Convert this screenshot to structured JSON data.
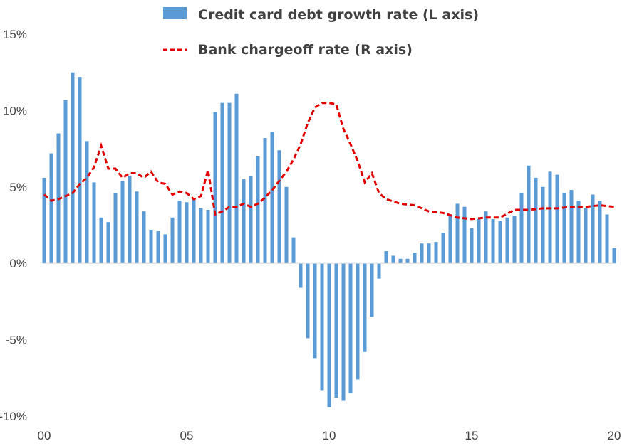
{
  "chart_data": {
    "type": "bar+line",
    "legend": {
      "placement": "top",
      "entries": [
        {
          "label": "Credit card debt growth rate (L axis)",
          "marker": "bar",
          "color": "#5B9BD5"
        },
        {
          "label": "Bank chargeoff rate (R axis)",
          "marker": "dashed-line",
          "color": "#E00000"
        }
      ]
    },
    "y_axis": {
      "ylim": [
        -10,
        15
      ],
      "ticks": [
        15,
        10,
        5,
        0,
        -5,
        -10
      ],
      "tick_labels": [
        "15%",
        "10%",
        "5%",
        "0%",
        "-5%",
        "-10%"
      ]
    },
    "x_axis": {
      "xlim": [
        2000,
        2020
      ],
      "ticks": [
        2000,
        2005,
        2010,
        2015,
        2020
      ],
      "tick_labels": [
        "00",
        "05",
        "10",
        "15",
        "20"
      ]
    },
    "grid": false,
    "series": [
      {
        "name": "Credit card debt growth rate (L axis)",
        "kind": "bar",
        "color": "#5B9BD5",
        "x_start": 2000.0,
        "x_step": 0.25,
        "values": [
          5.6,
          7.2,
          8.5,
          10.7,
          12.5,
          12.2,
          8.0,
          5.3,
          3.0,
          2.7,
          4.6,
          5.4,
          5.7,
          4.7,
          3.4,
          2.2,
          2.1,
          1.9,
          3.0,
          4.1,
          4.0,
          4.2,
          3.6,
          3.5,
          9.9,
          10.5,
          10.5,
          11.1,
          5.5,
          5.7,
          7.0,
          8.2,
          8.6,
          7.4,
          5.0,
          1.7,
          -1.6,
          -4.9,
          -6.2,
          -8.3,
          -9.4,
          -8.8,
          -9.0,
          -8.5,
          -7.6,
          -5.8,
          -3.5,
          -1.0,
          0.8,
          0.5,
          0.3,
          0.3,
          0.7,
          1.3,
          1.3,
          1.4,
          2.0,
          3.2,
          3.9,
          3.7,
          2.3,
          2.9,
          3.4,
          2.9,
          2.8,
          3.0,
          3.1,
          4.6,
          6.4,
          5.6,
          5.0,
          6.0,
          5.8,
          4.6,
          4.8,
          4.1,
          3.6,
          4.5,
          4.1,
          3.2,
          1.0
        ]
      },
      {
        "name": "Bank chargeoff rate (R axis)",
        "kind": "line",
        "style": "dashed",
        "color": "#E00000",
        "x": [
          2000.0,
          2000.25,
          2000.5,
          2000.75,
          2001.0,
          2001.25,
          2001.5,
          2001.75,
          2002.0,
          2002.25,
          2002.5,
          2002.75,
          2003.0,
          2003.25,
          2003.5,
          2003.75,
          2004.0,
          2004.25,
          2004.5,
          2004.75,
          2005.0,
          2005.25,
          2005.5,
          2005.75,
          2006.0,
          2006.25,
          2006.5,
          2006.75,
          2007.0,
          2007.25,
          2007.5,
          2007.75,
          2008.0,
          2008.25,
          2008.5,
          2008.75,
          2009.0,
          2009.25,
          2009.5,
          2009.75,
          2010.0,
          2010.25,
          2010.5,
          2010.75,
          2011.0,
          2011.25,
          2011.5,
          2011.75,
          2012.0,
          2012.5,
          2013.0,
          2013.5,
          2014.0,
          2014.5,
          2015.0,
          2015.5,
          2016.0,
          2016.5,
          2017.0,
          2017.5,
          2018.0,
          2018.5,
          2019.0,
          2019.5,
          2020.0
        ],
        "values": [
          4.5,
          4.1,
          4.2,
          4.4,
          4.6,
          5.2,
          5.6,
          6.3,
          7.7,
          6.2,
          6.2,
          5.6,
          5.9,
          5.9,
          5.6,
          6.0,
          5.3,
          5.2,
          4.5,
          4.7,
          4.6,
          4.2,
          4.4,
          6.1,
          3.2,
          3.4,
          3.7,
          3.7,
          3.9,
          3.7,
          3.9,
          4.3,
          4.8,
          5.4,
          6.0,
          6.8,
          7.8,
          9.2,
          10.2,
          10.5,
          10.5,
          10.4,
          8.8,
          7.8,
          6.7,
          5.3,
          5.9,
          4.6,
          4.2,
          3.9,
          3.8,
          3.4,
          3.3,
          3.0,
          2.9,
          3.0,
          3.0,
          3.5,
          3.5,
          3.6,
          3.6,
          3.7,
          3.7,
          3.8,
          3.7
        ]
      }
    ]
  }
}
